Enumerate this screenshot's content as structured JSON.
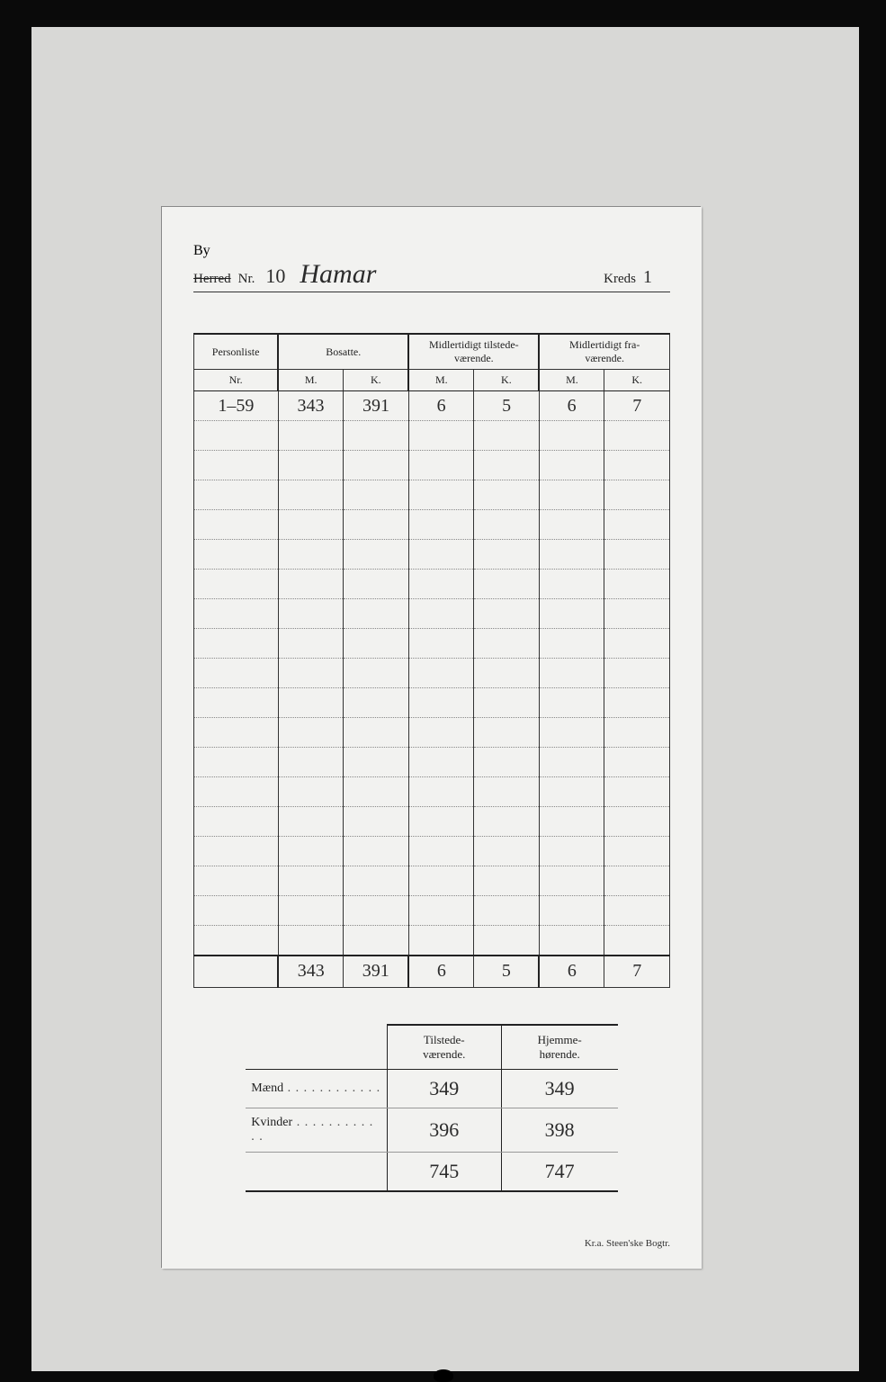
{
  "colors": {
    "page_bg": "#0a0a0a",
    "scan_bg": "#d8d8d6",
    "sheet_bg": "#f2f2f0",
    "ink": "#222222",
    "handwriting": "#2b2b2b",
    "rule": "#333333",
    "dotted": "#888888"
  },
  "header": {
    "overwrite_label": "By",
    "struck_label": "Herred",
    "nr_label": "Nr.",
    "nr_value": "10",
    "place_name": "Hamar",
    "kreds_label": "Kreds",
    "kreds_value": "1"
  },
  "main_table": {
    "columns": {
      "personliste": "Personliste",
      "bosatte": "Bosatte.",
      "midl_tilstede": "Midlertidigt tilstede-\nværende.",
      "midl_fra": "Midlertidigt fra-\nværende.",
      "sub_nr": "Nr.",
      "sub_m": "M.",
      "sub_k": "K."
    },
    "row": {
      "nr": "1–59",
      "bosatte_m": "343",
      "bosatte_k": "391",
      "til_m": "6",
      "til_k": "5",
      "fra_m": "6",
      "fra_k": "7"
    },
    "blank_row_count": 18,
    "totals": {
      "bosatte_m": "343",
      "bosatte_k": "391",
      "til_m": "6",
      "til_k": "5",
      "fra_m": "6",
      "fra_k": "7"
    }
  },
  "summary": {
    "col_tilstede": "Tilstede-\nværende.",
    "col_hjemme": "Hjemme-\nhørende.",
    "rows": [
      {
        "label": "Mænd",
        "tilstede": "349",
        "hjemme": "349"
      },
      {
        "label": "Kvinder",
        "tilstede": "396",
        "hjemme": "398"
      }
    ],
    "totals": {
      "tilstede": "745",
      "hjemme": "747"
    }
  },
  "printer_line": "Kr.a.  Steen'ske Bogtr."
}
